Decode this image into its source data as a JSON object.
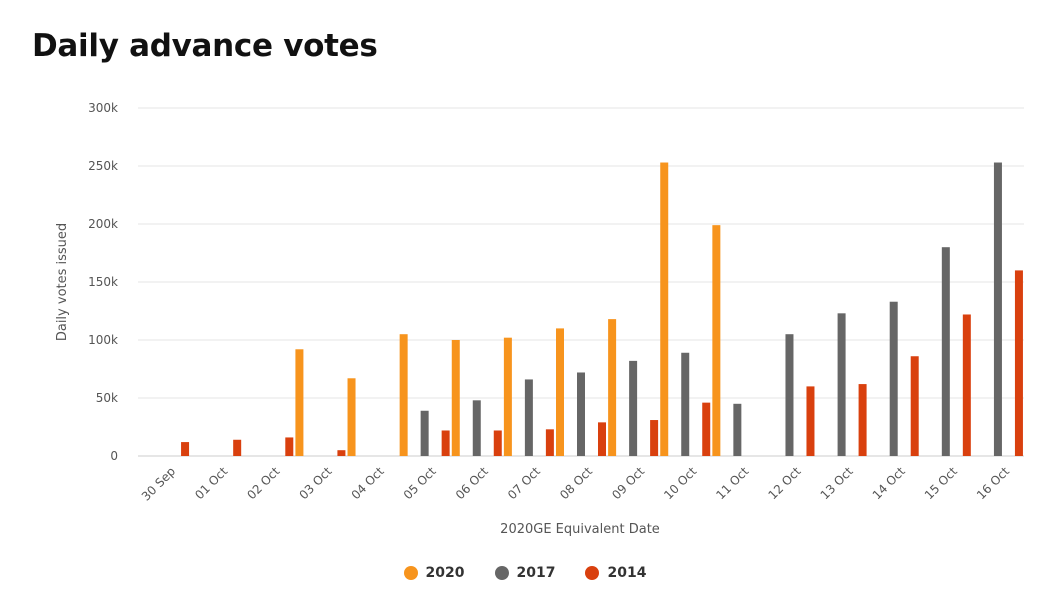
{
  "page": {
    "title": "Daily advance votes"
  },
  "chart_data": {
    "type": "bar",
    "title": "Daily advance votes",
    "xlabel": "2020GE Equivalent Date",
    "ylabel": "Daily votes issued",
    "ylim": [
      0,
      300000
    ],
    "yticks": [
      0,
      50000,
      100000,
      150000,
      200000,
      250000,
      300000
    ],
    "ytick_labels": [
      "0",
      "50k",
      "100k",
      "150k",
      "200k",
      "250k",
      "300k"
    ],
    "grid": true,
    "legend_position": "bottom-center",
    "categories": [
      "30 Sep",
      "01 Oct",
      "02 Oct",
      "03 Oct",
      "04 Oct",
      "05 Oct",
      "06 Oct",
      "07 Oct",
      "08 Oct",
      "09 Oct",
      "10 Oct",
      "11 Oct",
      "12 Oct",
      "13 Oct",
      "14 Oct",
      "15 Oct",
      "16 Oct"
    ],
    "series": [
      {
        "name": "2020",
        "color": "#f7941d",
        "values": [
          null,
          null,
          null,
          92000,
          67000,
          105000,
          100000,
          102000,
          110000,
          118000,
          253000,
          199000,
          null,
          null,
          null,
          null,
          null
        ]
      },
      {
        "name": "2017",
        "color": "#666666",
        "values": [
          null,
          null,
          null,
          null,
          null,
          39000,
          48000,
          66000,
          72000,
          82000,
          89000,
          45000,
          105000,
          123000,
          133000,
          180000,
          253000
        ]
      },
      {
        "name": "2014",
        "color": "#d9400e",
        "values": [
          12000,
          14000,
          16000,
          5000,
          null,
          22000,
          22000,
          23000,
          29000,
          31000,
          46000,
          null,
          60000,
          62000,
          86000,
          122000,
          160000
        ]
      }
    ]
  }
}
